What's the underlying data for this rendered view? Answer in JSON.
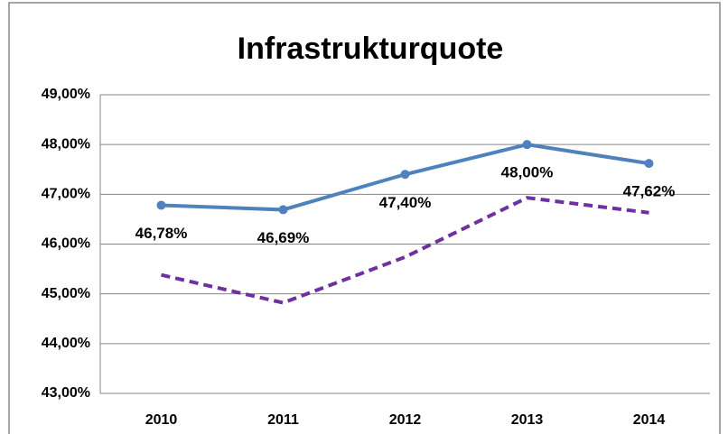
{
  "chart_data": {
    "type": "line",
    "title": "Infrastrukturquote",
    "categories": [
      "2010",
      "2011",
      "2012",
      "2013",
      "2014"
    ],
    "series": [
      {
        "color": "#4f81bd",
        "line_style": "solid",
        "markers": true,
        "values": [
          46.78,
          46.69,
          47.4,
          48.0,
          47.62
        ],
        "value_labels": [
          "46,78%",
          "46,69%",
          "47,40%",
          "48,00%",
          "47,62%"
        ]
      },
      {
        "color": "#7030a0",
        "line_style": "dashed",
        "markers": false,
        "values": [
          45.38,
          44.82,
          45.74,
          46.93,
          46.63
        ]
      }
    ],
    "ylim": [
      43,
      49
    ],
    "yticks": [
      {
        "value": 43,
        "label": "43,00%"
      },
      {
        "value": 44,
        "label": "44,00%"
      },
      {
        "value": 45,
        "label": "45,00%"
      },
      {
        "value": 46,
        "label": "46,00%"
      },
      {
        "value": 47,
        "label": "47,00%"
      },
      {
        "value": 48,
        "label": "48,00%"
      },
      {
        "value": 49,
        "label": "49,00%"
      }
    ],
    "grid": true
  }
}
